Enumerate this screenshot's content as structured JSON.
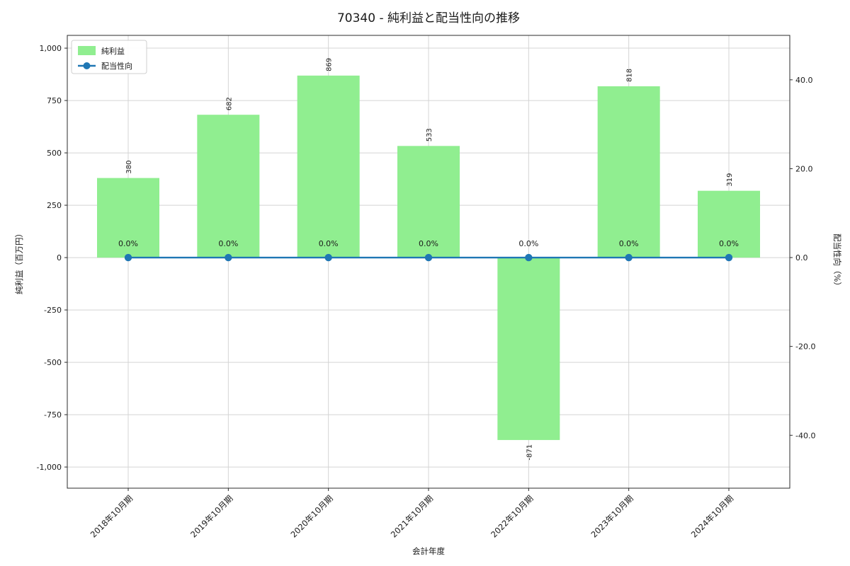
{
  "chart_data": {
    "type": "bar",
    "title": "70340 - 純利益と配当性向の推移",
    "xlabel": "会計年度",
    "ylabel_left": "純利益（百万円）",
    "ylabel_right": "配当性向（%）",
    "categories": [
      "2018年10月期",
      "2019年10月期",
      "2020年10月期",
      "2021年10月期",
      "2022年10月期",
      "2023年10月期",
      "2024年10月期"
    ],
    "series": [
      {
        "name": "純利益",
        "type": "bar",
        "axis": "left",
        "color": "#90ee90",
        "values": [
          380,
          682,
          869,
          533,
          -871,
          818,
          319
        ],
        "value_labels": [
          "380",
          "682",
          "869",
          "533",
          "-871",
          "818",
          "319"
        ]
      },
      {
        "name": "配当性向",
        "type": "line",
        "axis": "right",
        "marker": "circle",
        "color": "#1f77b4",
        "values": [
          0.0,
          0.0,
          0.0,
          0.0,
          0.0,
          0.0,
          0.0
        ],
        "value_labels": [
          "0.0%",
          "0.0%",
          "0.0%",
          "0.0%",
          "0.0%",
          "0.0%",
          "0.0%"
        ],
        "value_label_color": "#2e9ad2"
      }
    ],
    "axes": {
      "left": {
        "ticks": [
          1000,
          750,
          500,
          250,
          0,
          -250,
          -500,
          -750,
          -1000
        ],
        "tick_labels": [
          "1,000",
          "750",
          "500",
          "250",
          "0",
          "-250",
          "-500",
          "-750",
          "-1,000"
        ],
        "lim": [
          -1101,
          1061
        ]
      },
      "right": {
        "ticks": [
          40,
          20,
          0,
          -20,
          -40
        ],
        "tick_labels": [
          "40.0",
          "20.0",
          "0.0",
          "-20.0",
          "-40.0"
        ],
        "lim": [
          -51.9,
          50.0
        ]
      }
    },
    "grid": true,
    "legend": {
      "position": "upper-left",
      "entries": [
        "純利益",
        "配当性向"
      ]
    },
    "colors": {
      "grid": "#d4d4d4",
      "spine": "#2b2b2b",
      "text": "#1a1a1a",
      "background": "#ffffff"
    }
  }
}
